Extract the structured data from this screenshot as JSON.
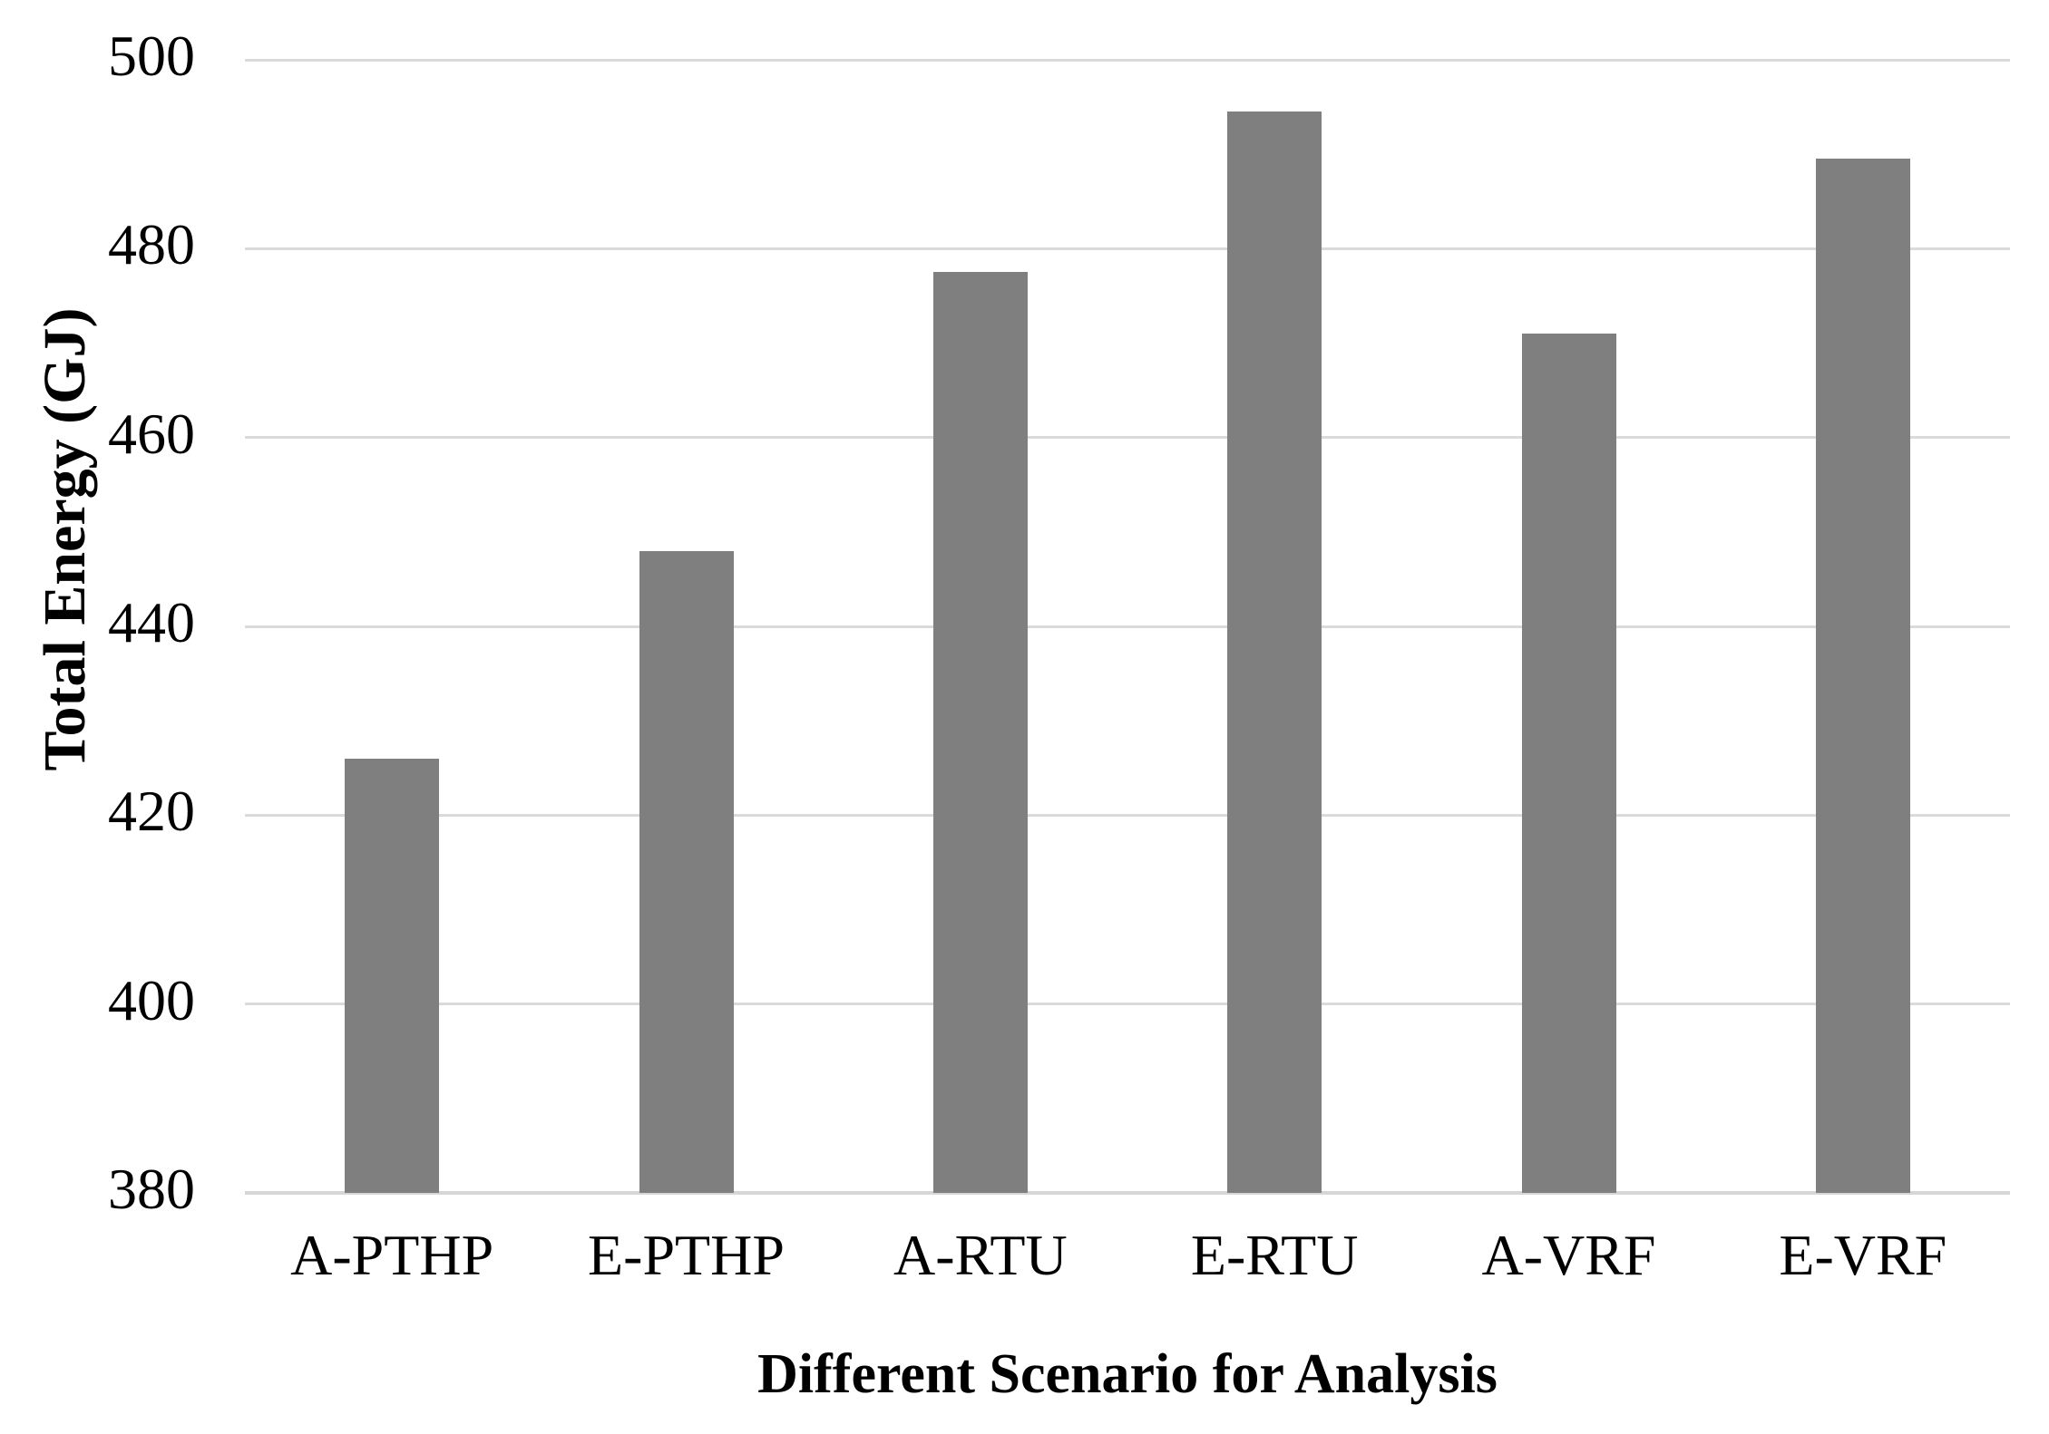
{
  "chart_data": {
    "type": "bar",
    "title": "",
    "categories": [
      "A-PTHP",
      "E-PTHP",
      "A-RTU",
      "E-RTU",
      "A-VRF",
      "E-VRF"
    ],
    "values": [
      426,
      448,
      477.5,
      494.5,
      471,
      489.5
    ],
    "xlabel": "Different Scenario for Analysis",
    "ylabel": "Total Energy (GJ)",
    "ylim": [
      380,
      500
    ],
    "ytick_step": 20,
    "yticks": [
      380,
      400,
      420,
      440,
      460,
      480,
      500
    ],
    "grid": true,
    "legend": "none",
    "bar_color": "#7F7F7F",
    "gridline_color": "#DADADA",
    "axis_line_color": "#D6D6D6",
    "text_color": "#000000",
    "background": "#FFFFFF"
  }
}
